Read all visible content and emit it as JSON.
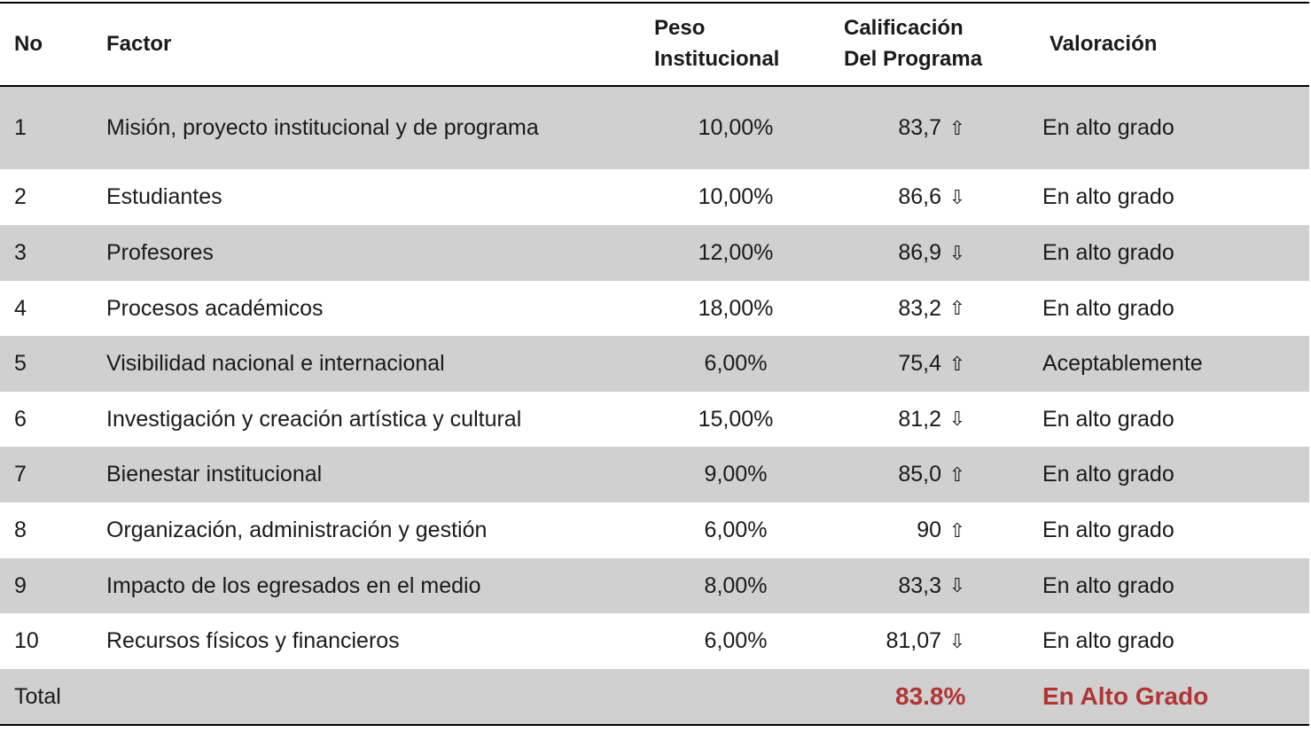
{
  "header": {
    "no": "No",
    "factor": "Factor",
    "peso_line1": "Peso",
    "peso_line2": "Institucional",
    "cal_line1": "Calificación",
    "cal_line2": "Del Programa",
    "valoracion": "Valoración"
  },
  "rows": [
    {
      "no": "1",
      "factor": "Misión, proyecto institucional y de programa",
      "peso": "10,00%",
      "calificacion": "83,7",
      "arrow": "⇧",
      "valoracion": "En alto grado"
    },
    {
      "no": "2",
      "factor": "Estudiantes",
      "peso": "10,00%",
      "calificacion": "86,6",
      "arrow": "⇩",
      "valoracion": "En alto grado"
    },
    {
      "no": "3",
      "factor": "Profesores",
      "peso": "12,00%",
      "calificacion": "86,9",
      "arrow": "⇩",
      "valoracion": "En alto grado"
    },
    {
      "no": "4",
      "factor": "Procesos académicos",
      "peso": "18,00%",
      "calificacion": "83,2",
      "arrow": "⇧",
      "valoracion": "En alto grado"
    },
    {
      "no": "5",
      "factor": "Visibilidad nacional e internacional",
      "peso": "6,00%",
      "calificacion": "75,4",
      "arrow": "⇧",
      "valoracion": "Aceptablemente"
    },
    {
      "no": "6",
      "factor": "Investigación y creación artística y cultural",
      "peso": "15,00%",
      "calificacion": "81,2",
      "arrow": "⇩",
      "valoracion": "En alto grado"
    },
    {
      "no": "7",
      "factor": "Bienestar institucional",
      "peso": "9,00%",
      "calificacion": "85,0",
      "arrow": "⇧",
      "valoracion": "En alto grado"
    },
    {
      "no": "8",
      "factor": "Organización, administración y gestión",
      "peso": "6,00%",
      "calificacion": "90",
      "arrow": "⇧",
      "valoracion": "En alto grado"
    },
    {
      "no": "9",
      "factor": "Impacto de los egresados en el medio",
      "peso": "8,00%",
      "calificacion": "83,3",
      "arrow": "⇩",
      "valoracion": "En alto grado"
    },
    {
      "no": "10",
      "factor": "Recursos físicos y financieros",
      "peso": "6,00%",
      "calificacion": "81,07",
      "arrow": "⇩",
      "valoracion": "En alto grado"
    }
  ],
  "total": {
    "label": "Total",
    "calificacion": "83.8%",
    "valoracion": "En Alto Grado"
  },
  "colors": {
    "grey_row": "#d0d0d0",
    "total_accent": "#b03535"
  }
}
